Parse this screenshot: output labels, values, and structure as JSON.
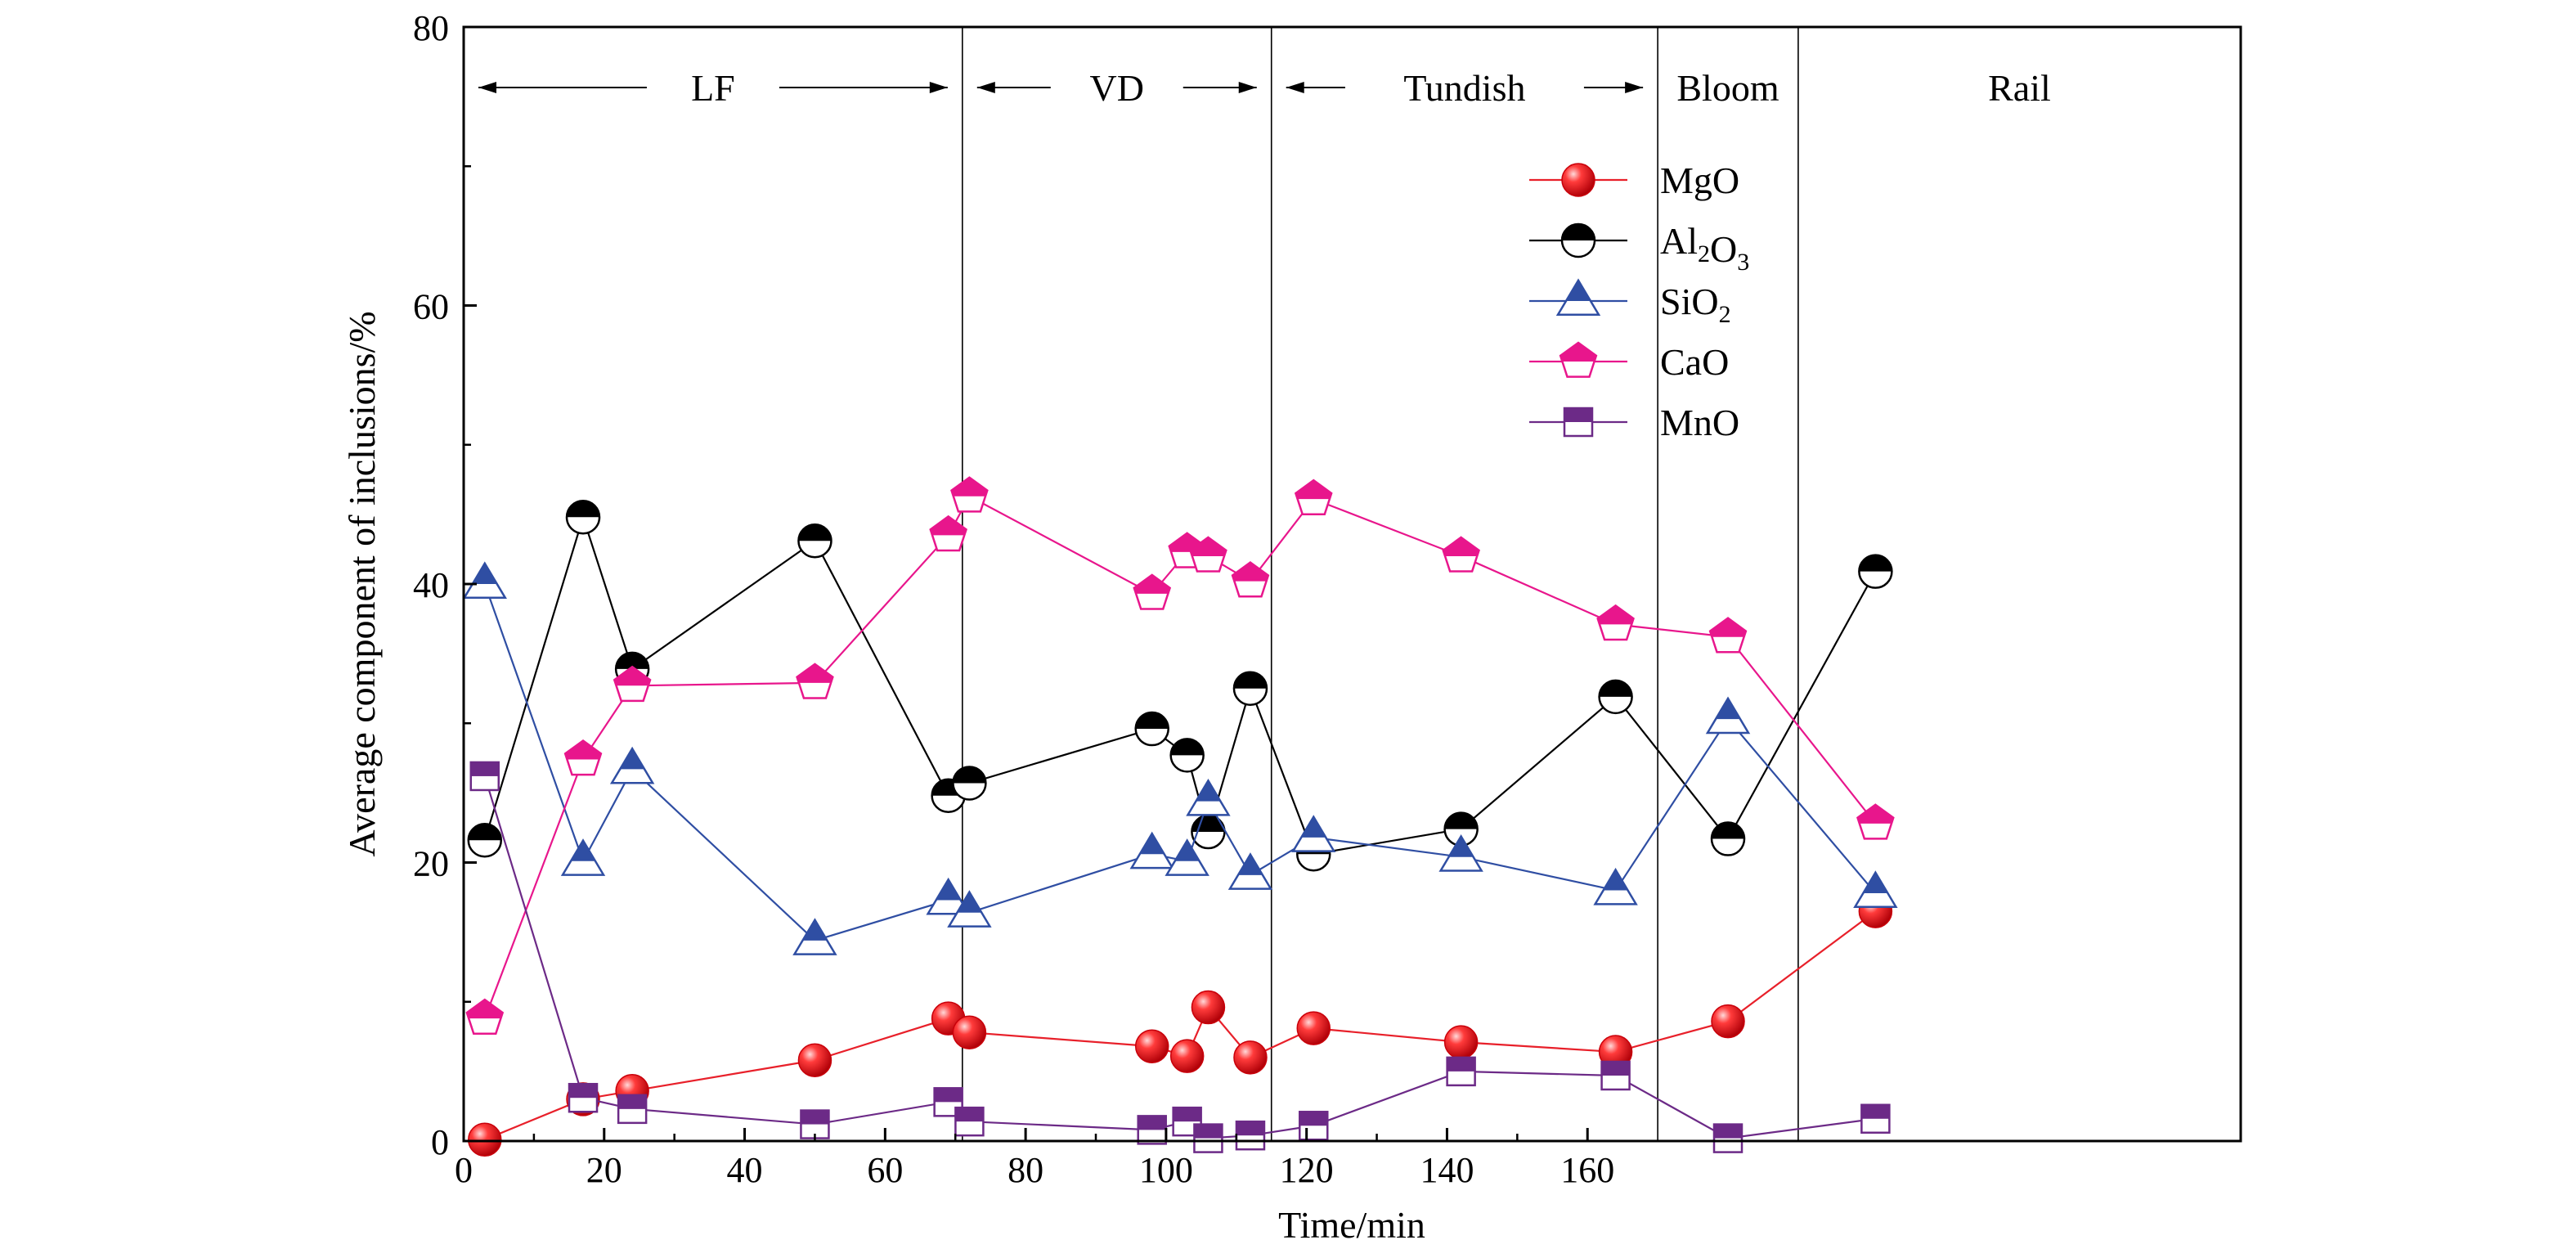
{
  "chart_data": {
    "type": "line",
    "xlabel": "Time/min",
    "ylabel": "Average component of inclusions/%",
    "xlim": [
      0,
      253
    ],
    "ylim": [
      0,
      80
    ],
    "xticks": [
      0,
      20,
      40,
      60,
      80,
      100,
      120,
      140,
      160
    ],
    "yticks": [
      0,
      20,
      40,
      60,
      80
    ],
    "grid": false,
    "legend_position": "upper-center",
    "stages": [
      {
        "label": "LF",
        "from": 0,
        "to": 71,
        "arrows": true
      },
      {
        "label": "VD",
        "from": 71,
        "to": 115,
        "arrows": true
      },
      {
        "label": "Tundish",
        "from": 115,
        "to": 170,
        "arrows": true
      },
      {
        "label": "Bloom",
        "from": 170,
        "to": 190,
        "arrows": false
      },
      {
        "label": "Rail",
        "from": 190,
        "to": 253,
        "arrows": false
      }
    ],
    "stage_boundaries": [
      71,
      115,
      170,
      190
    ],
    "series": [
      {
        "name": "MgO",
        "name_main": "MgO",
        "name_sub": "",
        "color": "#e8202a",
        "marker": "sphere",
        "points": [
          [
            3,
            0.1
          ],
          [
            17,
            3
          ],
          [
            24,
            3.6
          ],
          [
            50,
            5.8
          ],
          [
            69,
            8.8
          ],
          [
            72,
            7.8
          ],
          [
            98,
            6.8
          ],
          [
            103,
            6.1
          ],
          [
            106,
            9.6
          ],
          [
            112,
            6
          ],
          [
            121,
            8.1
          ],
          [
            142,
            7.1
          ],
          [
            164,
            6.4
          ],
          [
            180,
            8.6
          ],
          [
            201,
            16.5
          ]
        ]
      },
      {
        "name": "Al2O3",
        "name_main": "Al2O3",
        "name_sub": "",
        "color": "#000000",
        "marker": "half-circle",
        "points": [
          [
            3,
            21.6
          ],
          [
            17,
            44.8
          ],
          [
            24,
            33.9
          ],
          [
            50,
            43.1
          ],
          [
            69,
            24.8
          ],
          [
            72,
            25.7
          ],
          [
            98,
            29.6
          ],
          [
            103,
            27.7
          ],
          [
            106,
            22.2
          ],
          [
            112,
            32.5
          ],
          [
            121,
            20.6
          ],
          [
            142,
            22.4
          ],
          [
            164,
            31.9
          ],
          [
            180,
            21.7
          ],
          [
            201,
            40.9
          ]
        ]
      },
      {
        "name": "SiO2",
        "name_main": "SiO2",
        "name_sub": "",
        "color": "#2f4ea3",
        "marker": "half-triangle",
        "points": [
          [
            3,
            40
          ],
          [
            17,
            20.1
          ],
          [
            24,
            26.7
          ],
          [
            50,
            14.4
          ],
          [
            69,
            17.3
          ],
          [
            72,
            16.4
          ],
          [
            98,
            20.6
          ],
          [
            103,
            20.1
          ],
          [
            106,
            24.4
          ],
          [
            112,
            19.1
          ],
          [
            121,
            21.8
          ],
          [
            142,
            20.4
          ],
          [
            164,
            18
          ],
          [
            180,
            30.3
          ],
          [
            201,
            17.8
          ]
        ]
      },
      {
        "name": "CaO",
        "name_main": "CaO",
        "name_sub": "",
        "color": "#e8168c",
        "marker": "half-pentagon",
        "points": [
          [
            3,
            8.8
          ],
          [
            17,
            27.4
          ],
          [
            24,
            32.7
          ],
          [
            50,
            32.9
          ],
          [
            69,
            43.5
          ],
          [
            72,
            46.3
          ],
          [
            98,
            39.3
          ],
          [
            103,
            42.3
          ],
          [
            106,
            42
          ],
          [
            112,
            40.2
          ],
          [
            121,
            46.1
          ],
          [
            142,
            42
          ],
          [
            164,
            37.1
          ],
          [
            180,
            36.2
          ],
          [
            201,
            22.8
          ]
        ]
      },
      {
        "name": "MnO",
        "name_main": "MnO",
        "name_sub": "",
        "color": "#6c2a87",
        "marker": "half-square",
        "points": [
          [
            3,
            26.2
          ],
          [
            17,
            3.1
          ],
          [
            24,
            2.3
          ],
          [
            50,
            1.2
          ],
          [
            69,
            2.8
          ],
          [
            72,
            1.4
          ],
          [
            98,
            0.8
          ],
          [
            103,
            1.4
          ],
          [
            106,
            0.2
          ],
          [
            112,
            0.4
          ],
          [
            121,
            1.1
          ],
          [
            142,
            5
          ],
          [
            164,
            4.7
          ],
          [
            180,
            0.2
          ],
          [
            201,
            1.6
          ]
        ]
      }
    ]
  }
}
